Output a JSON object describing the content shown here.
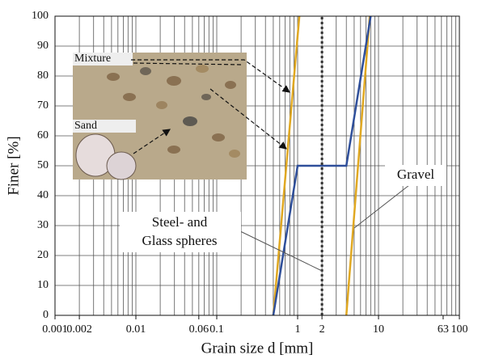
{
  "chart_data": {
    "type": "line",
    "log_x": true,
    "xlabel": "Grain size d [mm]",
    "ylabel": "Finer [%]",
    "xlim": [
      0.001,
      100
    ],
    "ylim": [
      0,
      100
    ],
    "xticks": [
      0.001,
      0.002,
      0.01,
      0.06,
      0.1,
      1,
      2,
      10,
      63,
      100
    ],
    "yticks": [
      0,
      10,
      20,
      30,
      40,
      50,
      60,
      70,
      80,
      90,
      100
    ],
    "xgrid": [
      0.001,
      0.002,
      0.003,
      0.004,
      0.005,
      0.006,
      0.007,
      0.008,
      0.009,
      0.01,
      0.02,
      0.03,
      0.04,
      0.05,
      0.06,
      0.07,
      0.08,
      0.09,
      0.1,
      0.2,
      0.3,
      0.4,
      0.5,
      0.6,
      0.7,
      0.8,
      0.9,
      1,
      2,
      3,
      4,
      5,
      6,
      7,
      8,
      9,
      10,
      20,
      30,
      40,
      50,
      60,
      70,
      80,
      90,
      100
    ],
    "grid": true,
    "series": [
      {
        "color": "#e0a822",
        "x": [
          0.5,
          1.05
        ],
        "values": [
          0,
          100
        ]
      },
      {
        "color": "#e0a822",
        "x": [
          4,
          7.8
        ],
        "values": [
          0,
          100
        ]
      },
      {
        "color": "#2f4f9a",
        "x": [
          0.5,
          1,
          4,
          8
        ],
        "values": [
          0,
          50,
          50,
          100
        ]
      },
      {
        "color": "#333333",
        "dashed": true,
        "x": [
          2,
          2
        ],
        "values": [
          0,
          100
        ]
      }
    ],
    "annotations": [
      "Mixture",
      "Sand",
      "Steel- and",
      "Glass spheres",
      "Gravel"
    ]
  }
}
